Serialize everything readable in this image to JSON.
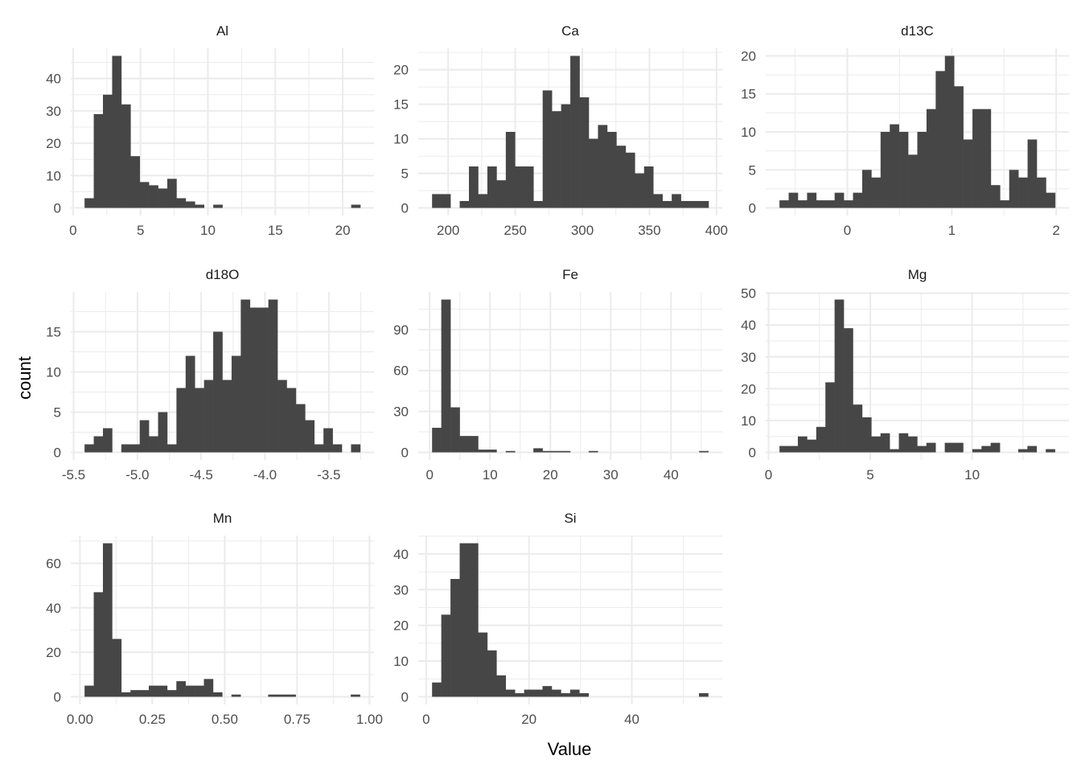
{
  "chart_data": {
    "type": "bar",
    "subtype": "faceted-histogram",
    "xlabel": "Value",
    "ylabel": "count",
    "grid": true,
    "bar_color": "#464646",
    "bins_per_panel": 30,
    "panels": [
      {
        "title": "Al",
        "bin_start": 0.85,
        "bin_width": 0.682,
        "counts": [
          3,
          29,
          35,
          47,
          32,
          16,
          8,
          7,
          6,
          9,
          3,
          2,
          1,
          0,
          1,
          0,
          0,
          0,
          0,
          0,
          0,
          0,
          0,
          0,
          0,
          0,
          0,
          0,
          0,
          1
        ],
        "xlim": [
          0.85,
          21.3
        ],
        "ylim": [
          0,
          47
        ],
        "x_breaks": [
          0,
          5,
          10,
          15,
          20
        ],
        "x_labels": [
          "0",
          "5",
          "10",
          "15",
          "20"
        ],
        "y_breaks": [
          0,
          10,
          20,
          30,
          40
        ],
        "y_labels": [
          "0",
          "10",
          "20",
          "30",
          "40"
        ]
      },
      {
        "title": "Ca",
        "bin_start": 188,
        "bin_width": 6.87,
        "counts": [
          2,
          2,
          0,
          1,
          6,
          2,
          6,
          4,
          11,
          6,
          6,
          1,
          17,
          14,
          15,
          22,
          16,
          10,
          12,
          11,
          9,
          8,
          5,
          6,
          2,
          1,
          2,
          1,
          1,
          1
        ],
        "xlim": [
          188,
          394
        ],
        "ylim": [
          0,
          22
        ],
        "x_breaks": [
          200,
          250,
          300,
          350,
          400
        ],
        "x_labels": [
          "200",
          "250",
          "300",
          "350",
          "400"
        ],
        "y_breaks": [
          0,
          5,
          10,
          15,
          20
        ],
        "y_labels": [
          "0",
          "5",
          "10",
          "15",
          "20"
        ]
      },
      {
        "title": "d13C",
        "bin_start": -0.65,
        "bin_width": 0.088,
        "counts": [
          1,
          2,
          1,
          2,
          1,
          1,
          2,
          1,
          2,
          5,
          4,
          10,
          11,
          10,
          7,
          10,
          13,
          18,
          20,
          16,
          9,
          13,
          13,
          3,
          1,
          5,
          4,
          9,
          4,
          2
        ],
        "xlim": [
          -0.65,
          1.99
        ],
        "ylim": [
          0,
          20
        ],
        "x_breaks": [
          0,
          1,
          2
        ],
        "x_labels": [
          "0",
          "1",
          "2"
        ],
        "y_breaks": [
          0,
          5,
          10,
          15,
          20
        ],
        "y_labels": [
          "0",
          "5",
          "10",
          "15",
          "20"
        ]
      },
      {
        "title": "d18O",
        "bin_start": -5.414,
        "bin_width": 0.072,
        "counts": [
          1,
          2,
          3,
          0,
          1,
          1,
          4,
          2,
          5,
          1,
          8,
          12,
          8,
          9,
          15,
          9,
          12,
          19,
          18,
          18,
          19,
          9,
          8,
          6,
          4,
          1,
          3,
          1,
          0,
          1
        ],
        "xlim": [
          -5.414,
          -3.254
        ],
        "ylim": [
          0,
          19
        ],
        "x_breaks": [
          -5.5,
          -5.0,
          -4.5,
          -4.0,
          -3.5
        ],
        "x_labels": [
          "-5.5",
          "-5.0",
          "-4.5",
          "-4.0",
          "-3.5"
        ],
        "y_breaks": [
          0,
          5,
          10,
          15
        ],
        "y_labels": [
          "0",
          "5",
          "10",
          "15"
        ]
      },
      {
        "title": "Fe",
        "bin_start": 0.4,
        "bin_width": 1.526,
        "counts": [
          18,
          112,
          33,
          12,
          12,
          2,
          2,
          0,
          1,
          0,
          0,
          3,
          1,
          1,
          1,
          0,
          0,
          1,
          0,
          0,
          0,
          0,
          0,
          0,
          0,
          0,
          0,
          0,
          0,
          1
        ],
        "xlim": [
          0.4,
          46.2
        ],
        "ylim": [
          0,
          112
        ],
        "x_breaks": [
          0,
          10,
          20,
          30,
          40
        ],
        "x_labels": [
          "0",
          "10",
          "20",
          "30",
          "40"
        ],
        "y_breaks": [
          0,
          30,
          60,
          90
        ],
        "y_labels": [
          "0",
          "30",
          "60",
          "90"
        ]
      },
      {
        "title": "Mg",
        "bin_start": 0.54,
        "bin_width": 0.451,
        "counts": [
          2,
          2,
          5,
          4,
          8,
          22,
          48,
          39,
          15,
          11,
          5,
          6,
          1,
          6,
          5,
          2,
          3,
          0,
          3,
          3,
          0,
          1,
          2,
          3,
          0,
          0,
          1,
          2,
          0,
          1
        ],
        "xlim": [
          0.54,
          14.08
        ],
        "ylim": [
          0,
          48
        ],
        "x_breaks": [
          0,
          5,
          10
        ],
        "x_labels": [
          "0",
          "5",
          "10"
        ],
        "y_breaks": [
          0,
          10,
          20,
          30,
          40,
          50
        ],
        "y_labels": [
          "0",
          "10",
          "20",
          "30",
          "40",
          "50"
        ]
      },
      {
        "title": "Mn",
        "bin_start": 0.016,
        "bin_width": 0.0317,
        "counts": [
          5,
          47,
          69,
          26,
          2,
          3,
          3,
          5,
          5,
          3,
          7,
          5,
          5,
          8,
          2,
          0,
          1,
          0,
          0,
          0,
          1,
          1,
          1,
          0,
          0,
          0,
          0,
          0,
          0,
          1
        ],
        "xlim": [
          0.016,
          0.968
        ],
        "ylim": [
          0,
          69
        ],
        "x_breaks": [
          0,
          0.25,
          0.5,
          0.75,
          1.0
        ],
        "x_labels": [
          "0.00",
          "0.25",
          "0.50",
          "0.75",
          "1.00"
        ],
        "y_breaks": [
          0,
          20,
          40,
          60
        ],
        "y_labels": [
          "0",
          "20",
          "40",
          "60"
        ]
      },
      {
        "title": "Si",
        "bin_start": 1.15,
        "bin_width": 1.79,
        "counts": [
          4,
          23,
          33,
          43,
          43,
          18,
          13,
          6,
          2,
          1,
          2,
          2,
          3,
          2,
          1,
          2,
          1,
          0,
          0,
          0,
          0,
          0,
          0,
          0,
          0,
          0,
          0,
          0,
          0,
          1
        ],
        "xlim": [
          1.15,
          54.9
        ],
        "ylim": [
          0,
          43
        ],
        "x_breaks": [
          0,
          20,
          40
        ],
        "x_labels": [
          "0",
          "20",
          "40"
        ],
        "y_breaks": [
          0,
          10,
          20,
          30,
          40
        ],
        "y_labels": [
          "0",
          "10",
          "20",
          "30",
          "40"
        ]
      }
    ]
  }
}
